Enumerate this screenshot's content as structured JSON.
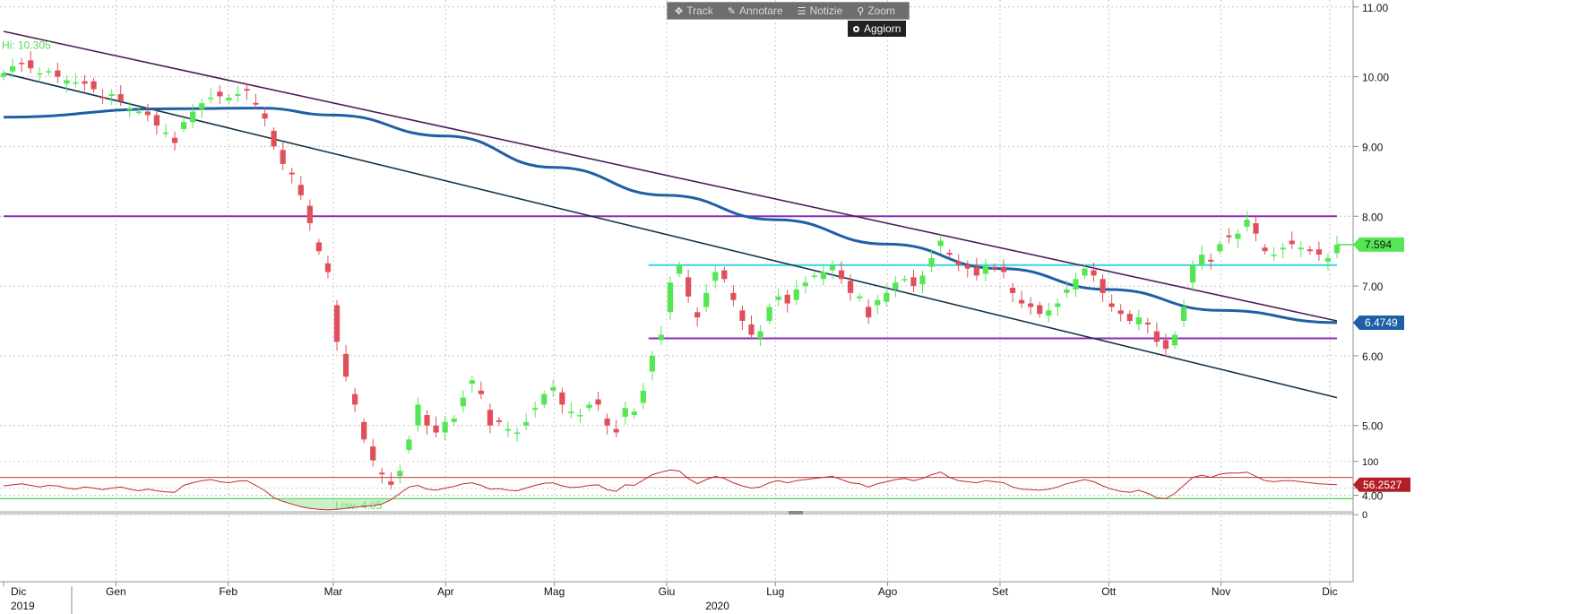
{
  "toolbar": {
    "items": [
      {
        "label": "Track",
        "icon": "crosshair-icon"
      },
      {
        "label": "Annotare",
        "icon": "pencil-icon"
      },
      {
        "label": "Notizie",
        "icon": "news-icon"
      },
      {
        "label": "Zoom",
        "icon": "magnifier-icon"
      }
    ],
    "refresh_label": "Aggiorn"
  },
  "colors": {
    "up": "#55e655",
    "down": "#e0505a",
    "ma": "#1f5fa6",
    "trend_upper": "#4a1d5a",
    "trend_lower": "#13344a",
    "resistance": "#8b2bb5",
    "cyan_level": "#37d6e6",
    "rsi_line": "#c0282e",
    "rsi_upper": "#c33838",
    "rsi_lower": "#4fcf4f"
  },
  "chart_data": [
    {
      "type": "candlestick",
      "title": "",
      "ylim": [
        3.75,
        11.1
      ],
      "y_ticks": [
        "11.00",
        "10.00",
        "9.00",
        "8.00",
        "7.00",
        "6.00",
        "5.00",
        "4.00"
      ],
      "x_start": "2019-12-01",
      "x_end": "2020-12-03",
      "x_month_labels": [
        {
          "label": "Dic",
          "date": "2019-12-01"
        },
        {
          "label": "Gen",
          "date": "2020-01-01"
        },
        {
          "label": "Feb",
          "date": "2020-02-01"
        },
        {
          "label": "Mar",
          "date": "2020-03-01"
        },
        {
          "label": "Apr",
          "date": "2020-04-01"
        },
        {
          "label": "Mag",
          "date": "2020-05-01"
        },
        {
          "label": "Giu",
          "date": "2020-06-01"
        },
        {
          "label": "Lug",
          "date": "2020-07-01"
        },
        {
          "label": "Ago",
          "date": "2020-08-01"
        },
        {
          "label": "Set",
          "date": "2020-09-01"
        },
        {
          "label": "Ott",
          "date": "2020-10-01"
        },
        {
          "label": "Nov",
          "date": "2020-11-01"
        },
        {
          "label": "Dic",
          "date": "2020-12-01"
        }
      ],
      "x_year_labels": [
        {
          "label": "2019",
          "date": "2019-12-01"
        },
        {
          "label": "2020",
          "date": "2020-06-15"
        }
      ],
      "annotations": [
        {
          "text": "Hi: 10.305",
          "date": "2019-12-01",
          "value": 10.45
        },
        {
          "text": "Low: 4.05",
          "date": "2020-03-04",
          "value": 3.85
        }
      ],
      "last_price": {
        "label": "7.594",
        "value": 7.594
      },
      "ma_last": {
        "label": "6.4749",
        "value": 6.4749
      },
      "closes": [
        10.05,
        10.15,
        10.2,
        10.12,
        10.05,
        10.08,
        10.0,
        9.95,
        9.92,
        9.9,
        9.82,
        9.7,
        9.75,
        9.65,
        9.55,
        9.5,
        9.45,
        9.3,
        9.2,
        9.05,
        9.35,
        9.5,
        9.62,
        9.7,
        9.72,
        9.7,
        9.75,
        9.8,
        9.6,
        9.4,
        9.0,
        8.75,
        8.6,
        8.3,
        7.9,
        7.5,
        7.2,
        6.2,
        5.7,
        5.3,
        4.8,
        4.5,
        4.3,
        4.15,
        4.35,
        4.8,
        5.3,
        5.0,
        4.9,
        5.05,
        5.1,
        5.4,
        5.65,
        5.45,
        5.0,
        5.05,
        4.95,
        4.9,
        5.05,
        5.25,
        5.45,
        5.55,
        5.3,
        5.2,
        5.15,
        5.3,
        5.3,
        5.0,
        4.9,
        5.25,
        5.2,
        5.5,
        6.0,
        6.3,
        7.05,
        7.3,
        6.85,
        6.55,
        6.9,
        7.2,
        7.1,
        6.8,
        6.5,
        6.3,
        6.35,
        6.7,
        6.85,
        6.75,
        6.95,
        7.05,
        7.15,
        7.2,
        7.3,
        7.1,
        6.9,
        6.85,
        6.55,
        6.8,
        6.9,
        7.05,
        7.1,
        7.0,
        7.15,
        7.4,
        7.65,
        7.45,
        7.3,
        7.25,
        7.15,
        7.3,
        7.25,
        7.2,
        6.9,
        6.75,
        6.7,
        6.6,
        6.65,
        6.75,
        6.95,
        7.1,
        7.25,
        7.15,
        6.9,
        6.7,
        6.6,
        6.5,
        6.55,
        6.45,
        6.2,
        6.1,
        6.3,
        6.7,
        7.3,
        7.45,
        7.35,
        7.6,
        7.7,
        7.75,
        7.95,
        7.75,
        7.5,
        7.45,
        7.55,
        7.6,
        7.55,
        7.5,
        7.45,
        7.4,
        7.594
      ],
      "moving_average": [
        {
          "date": "2019-12-01",
          "value": 9.42
        },
        {
          "date": "2020-01-15",
          "value": 9.54
        },
        {
          "date": "2020-02-10",
          "value": 9.55
        },
        {
          "date": "2020-03-01",
          "value": 9.45
        },
        {
          "date": "2020-04-01",
          "value": 9.15
        },
        {
          "date": "2020-05-01",
          "value": 8.7
        },
        {
          "date": "2020-06-01",
          "value": 8.3
        },
        {
          "date": "2020-07-01",
          "value": 7.95
        },
        {
          "date": "2020-08-01",
          "value": 7.6
        },
        {
          "date": "2020-09-01",
          "value": 7.25
        },
        {
          "date": "2020-10-01",
          "value": 6.95
        },
        {
          "date": "2020-11-01",
          "value": 6.65
        },
        {
          "date": "2020-12-03",
          "value": 6.4749
        }
      ],
      "trendlines": [
        {
          "name": "upper",
          "from": {
            "date": "2019-12-01",
            "value": 10.65
          },
          "to": {
            "date": "2020-12-03",
            "value": 6.5
          }
        },
        {
          "name": "lower",
          "from": {
            "date": "2019-12-01",
            "value": 10.05
          },
          "to": {
            "date": "2020-12-03",
            "value": 5.4
          }
        }
      ],
      "levels": [
        {
          "name": "resistance",
          "value": 8.0,
          "from": "2019-12-01",
          "to": "2020-12-03"
        },
        {
          "name": "cyan",
          "value": 7.3,
          "from": "2020-05-27",
          "to": "2020-12-03"
        },
        {
          "name": "support",
          "value": 6.25,
          "from": "2020-05-27",
          "to": "2020-12-03"
        }
      ]
    },
    {
      "type": "line",
      "title": "",
      "ylim": [
        -8,
        108
      ],
      "y_ticks": [
        "100",
        "50",
        "0"
      ],
      "last_value": {
        "label": "56.2527",
        "value": 56.2527
      },
      "bands": [
        70,
        30
      ],
      "values": [
        54,
        56,
        58,
        55,
        52,
        55,
        54,
        50,
        48,
        52,
        50,
        47,
        50,
        52,
        48,
        45,
        48,
        45,
        43,
        42,
        55,
        60,
        64,
        66,
        62,
        60,
        63,
        64,
        55,
        45,
        32,
        25,
        20,
        15,
        12,
        10,
        9,
        10,
        12,
        14,
        16,
        17,
        20,
        28,
        40,
        52,
        55,
        48,
        46,
        50,
        53,
        58,
        60,
        55,
        48,
        49,
        46,
        45,
        50,
        55,
        59,
        60,
        54,
        51,
        52,
        55,
        56,
        47,
        44,
        56,
        55,
        65,
        75,
        80,
        84,
        82,
        68,
        58,
        66,
        72,
        68,
        60,
        54,
        50,
        52,
        60,
        64,
        60,
        64,
        66,
        68,
        70,
        72,
        66,
        60,
        58,
        52,
        58,
        62,
        66,
        68,
        64,
        68,
        75,
        80,
        70,
        64,
        62,
        60,
        64,
        62,
        60,
        52,
        48,
        47,
        46,
        48,
        52,
        58,
        62,
        66,
        62,
        54,
        48,
        44,
        42,
        46,
        40,
        32,
        30,
        40,
        55,
        70,
        74,
        70,
        76,
        78,
        78,
        80,
        72,
        64,
        62,
        64,
        64,
        62,
        60,
        58,
        57,
        56.2527
      ]
    }
  ]
}
